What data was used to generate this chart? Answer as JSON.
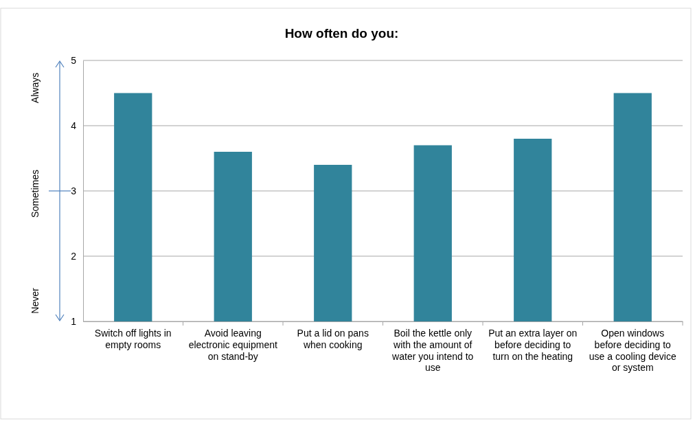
{
  "chart_data": {
    "type": "bar",
    "title": "How often do you:",
    "categories": [
      "Switch off lights in empty rooms",
      "Avoid leaving electronic equipment on stand-by",
      "Put a lid on pans when cooking",
      "Boil the kettle only with the amount of water you intend to use",
      "Put an extra layer on before deciding to turn on the heating",
      "Open windows before deciding to use a cooling device or system"
    ],
    "values": [
      4.5,
      3.6,
      3.4,
      3.7,
      3.8,
      4.5
    ],
    "color": "#31849b",
    "ylim": [
      1,
      5
    ],
    "yticks": [
      1,
      2,
      3,
      4,
      5
    ],
    "grid": "y",
    "annotations": [
      "Always",
      "Sometimes",
      "Never"
    ]
  }
}
